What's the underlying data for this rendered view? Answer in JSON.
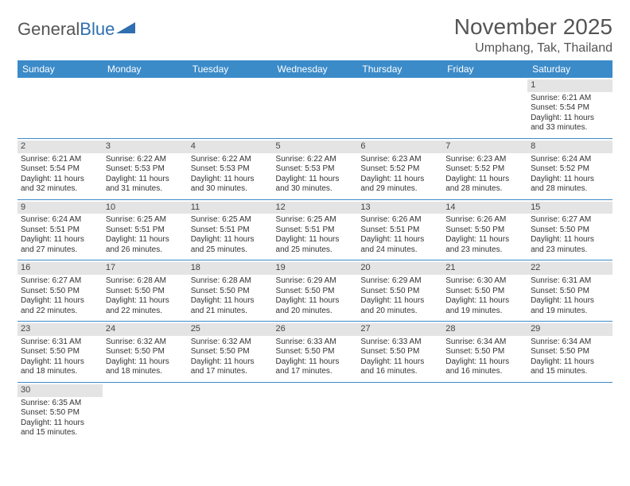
{
  "logo": {
    "text1": "General",
    "text2": "Blue"
  },
  "title": "November 2025",
  "location": "Umphang, Tak, Thailand",
  "colors": {
    "header_bg": "#3b8bc9",
    "header_text": "#ffffff",
    "daynum_bg": "#e4e4e4",
    "border": "#3b8bc9",
    "text": "#333333",
    "logo_gray": "#555555",
    "logo_blue": "#2f6fb0"
  },
  "day_headers": [
    "Sunday",
    "Monday",
    "Tuesday",
    "Wednesday",
    "Thursday",
    "Friday",
    "Saturday"
  ],
  "weeks": [
    [
      null,
      null,
      null,
      null,
      null,
      null,
      {
        "n": "1",
        "sr": "Sunrise: 6:21 AM",
        "ss": "Sunset: 5:54 PM",
        "d1": "Daylight: 11 hours",
        "d2": "and 33 minutes."
      }
    ],
    [
      {
        "n": "2",
        "sr": "Sunrise: 6:21 AM",
        "ss": "Sunset: 5:54 PM",
        "d1": "Daylight: 11 hours",
        "d2": "and 32 minutes."
      },
      {
        "n": "3",
        "sr": "Sunrise: 6:22 AM",
        "ss": "Sunset: 5:53 PM",
        "d1": "Daylight: 11 hours",
        "d2": "and 31 minutes."
      },
      {
        "n": "4",
        "sr": "Sunrise: 6:22 AM",
        "ss": "Sunset: 5:53 PM",
        "d1": "Daylight: 11 hours",
        "d2": "and 30 minutes."
      },
      {
        "n": "5",
        "sr": "Sunrise: 6:22 AM",
        "ss": "Sunset: 5:53 PM",
        "d1": "Daylight: 11 hours",
        "d2": "and 30 minutes."
      },
      {
        "n": "6",
        "sr": "Sunrise: 6:23 AM",
        "ss": "Sunset: 5:52 PM",
        "d1": "Daylight: 11 hours",
        "d2": "and 29 minutes."
      },
      {
        "n": "7",
        "sr": "Sunrise: 6:23 AM",
        "ss": "Sunset: 5:52 PM",
        "d1": "Daylight: 11 hours",
        "d2": "and 28 minutes."
      },
      {
        "n": "8",
        "sr": "Sunrise: 6:24 AM",
        "ss": "Sunset: 5:52 PM",
        "d1": "Daylight: 11 hours",
        "d2": "and 28 minutes."
      }
    ],
    [
      {
        "n": "9",
        "sr": "Sunrise: 6:24 AM",
        "ss": "Sunset: 5:51 PM",
        "d1": "Daylight: 11 hours",
        "d2": "and 27 minutes."
      },
      {
        "n": "10",
        "sr": "Sunrise: 6:25 AM",
        "ss": "Sunset: 5:51 PM",
        "d1": "Daylight: 11 hours",
        "d2": "and 26 minutes."
      },
      {
        "n": "11",
        "sr": "Sunrise: 6:25 AM",
        "ss": "Sunset: 5:51 PM",
        "d1": "Daylight: 11 hours",
        "d2": "and 25 minutes."
      },
      {
        "n": "12",
        "sr": "Sunrise: 6:25 AM",
        "ss": "Sunset: 5:51 PM",
        "d1": "Daylight: 11 hours",
        "d2": "and 25 minutes."
      },
      {
        "n": "13",
        "sr": "Sunrise: 6:26 AM",
        "ss": "Sunset: 5:51 PM",
        "d1": "Daylight: 11 hours",
        "d2": "and 24 minutes."
      },
      {
        "n": "14",
        "sr": "Sunrise: 6:26 AM",
        "ss": "Sunset: 5:50 PM",
        "d1": "Daylight: 11 hours",
        "d2": "and 23 minutes."
      },
      {
        "n": "15",
        "sr": "Sunrise: 6:27 AM",
        "ss": "Sunset: 5:50 PM",
        "d1": "Daylight: 11 hours",
        "d2": "and 23 minutes."
      }
    ],
    [
      {
        "n": "16",
        "sr": "Sunrise: 6:27 AM",
        "ss": "Sunset: 5:50 PM",
        "d1": "Daylight: 11 hours",
        "d2": "and 22 minutes."
      },
      {
        "n": "17",
        "sr": "Sunrise: 6:28 AM",
        "ss": "Sunset: 5:50 PM",
        "d1": "Daylight: 11 hours",
        "d2": "and 22 minutes."
      },
      {
        "n": "18",
        "sr": "Sunrise: 6:28 AM",
        "ss": "Sunset: 5:50 PM",
        "d1": "Daylight: 11 hours",
        "d2": "and 21 minutes."
      },
      {
        "n": "19",
        "sr": "Sunrise: 6:29 AM",
        "ss": "Sunset: 5:50 PM",
        "d1": "Daylight: 11 hours",
        "d2": "and 20 minutes."
      },
      {
        "n": "20",
        "sr": "Sunrise: 6:29 AM",
        "ss": "Sunset: 5:50 PM",
        "d1": "Daylight: 11 hours",
        "d2": "and 20 minutes."
      },
      {
        "n": "21",
        "sr": "Sunrise: 6:30 AM",
        "ss": "Sunset: 5:50 PM",
        "d1": "Daylight: 11 hours",
        "d2": "and 19 minutes."
      },
      {
        "n": "22",
        "sr": "Sunrise: 6:31 AM",
        "ss": "Sunset: 5:50 PM",
        "d1": "Daylight: 11 hours",
        "d2": "and 19 minutes."
      }
    ],
    [
      {
        "n": "23",
        "sr": "Sunrise: 6:31 AM",
        "ss": "Sunset: 5:50 PM",
        "d1": "Daylight: 11 hours",
        "d2": "and 18 minutes."
      },
      {
        "n": "24",
        "sr": "Sunrise: 6:32 AM",
        "ss": "Sunset: 5:50 PM",
        "d1": "Daylight: 11 hours",
        "d2": "and 18 minutes."
      },
      {
        "n": "25",
        "sr": "Sunrise: 6:32 AM",
        "ss": "Sunset: 5:50 PM",
        "d1": "Daylight: 11 hours",
        "d2": "and 17 minutes."
      },
      {
        "n": "26",
        "sr": "Sunrise: 6:33 AM",
        "ss": "Sunset: 5:50 PM",
        "d1": "Daylight: 11 hours",
        "d2": "and 17 minutes."
      },
      {
        "n": "27",
        "sr": "Sunrise: 6:33 AM",
        "ss": "Sunset: 5:50 PM",
        "d1": "Daylight: 11 hours",
        "d2": "and 16 minutes."
      },
      {
        "n": "28",
        "sr": "Sunrise: 6:34 AM",
        "ss": "Sunset: 5:50 PM",
        "d1": "Daylight: 11 hours",
        "d2": "and 16 minutes."
      },
      {
        "n": "29",
        "sr": "Sunrise: 6:34 AM",
        "ss": "Sunset: 5:50 PM",
        "d1": "Daylight: 11 hours",
        "d2": "and 15 minutes."
      }
    ],
    [
      {
        "n": "30",
        "sr": "Sunrise: 6:35 AM",
        "ss": "Sunset: 5:50 PM",
        "d1": "Daylight: 11 hours",
        "d2": "and 15 minutes."
      },
      null,
      null,
      null,
      null,
      null,
      null
    ]
  ]
}
